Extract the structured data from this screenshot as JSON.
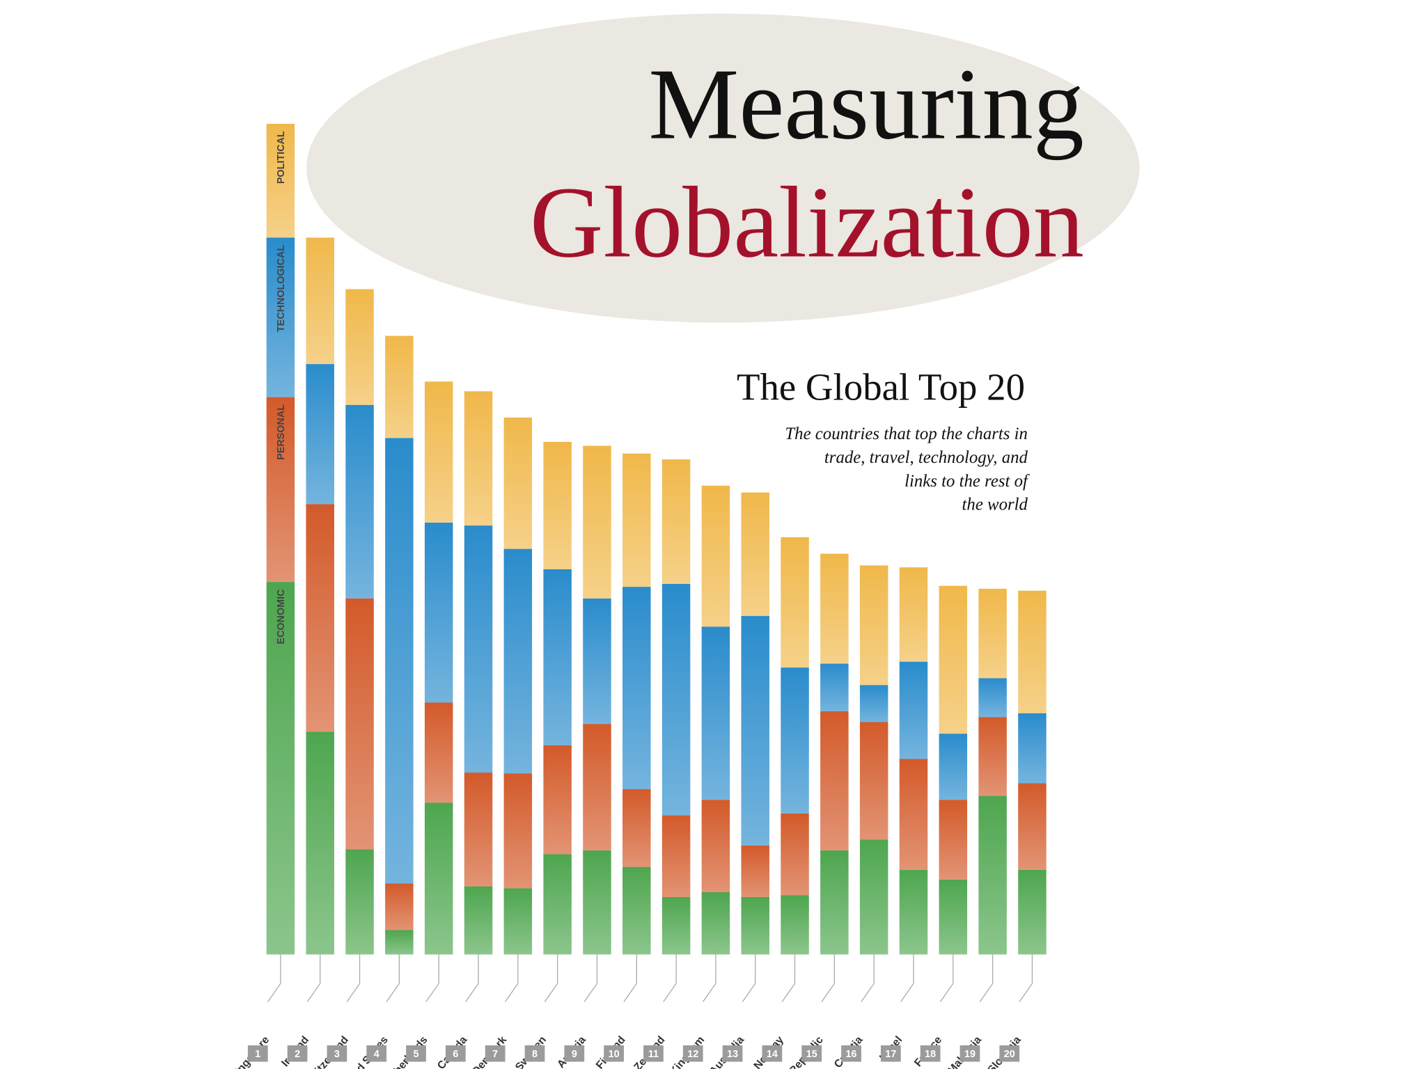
{
  "chart_data": {
    "type": "stacked_bar",
    "title_lines": [
      "Measuring",
      "Globalization"
    ],
    "subtitle": "The Global Top 20",
    "description_lines": [
      "The countries that top the charts in",
      "trade, travel, technology, and",
      "links to the rest of",
      "the world"
    ],
    "categories": [
      "Singapore",
      "Ireland",
      "Switzerland",
      "United States",
      "Netherlands",
      "Canada",
      "Denmark",
      "Sweden",
      "Austria",
      "Finland",
      "New Zealand",
      "United Kingdom",
      "Australia",
      "Norway",
      "Czech Republic",
      "Croatia",
      "Israel",
      "France",
      "Malaysia",
      "Slovenia"
    ],
    "ranks": [
      "1",
      "2",
      "3",
      "4",
      "5",
      "6",
      "7",
      "8",
      "9",
      "10",
      "11",
      "12",
      "13",
      "14",
      "15",
      "16",
      "17",
      "18",
      "19",
      "20"
    ],
    "ylim": [
      0,
      10
    ],
    "series": [
      {
        "name": "ECONOMIC",
        "color": "#4ea64f",
        "values": [
          3.83,
          2.29,
          1.08,
          0.25,
          1.56,
          0.7,
          0.68,
          1.03,
          1.07,
          0.9,
          0.59,
          0.64,
          0.59,
          0.61,
          1.07,
          1.18,
          0.87,
          0.77,
          1.63,
          0.87
        ]
      },
      {
        "name": "PERSONAL",
        "color": "#d35a2a",
        "values": [
          1.9,
          2.34,
          2.58,
          0.48,
          1.03,
          1.17,
          1.18,
          1.12,
          1.3,
          0.8,
          0.84,
          0.95,
          0.53,
          0.84,
          1.43,
          1.21,
          1.14,
          0.82,
          0.81,
          0.89
        ]
      },
      {
        "name": "TECHNOLOGICAL",
        "color": "#2a8ccc",
        "values": [
          1.64,
          1.44,
          1.99,
          4.58,
          1.85,
          2.54,
          2.31,
          1.81,
          1.29,
          2.08,
          2.38,
          1.78,
          2.36,
          1.5,
          0.49,
          0.38,
          1.0,
          0.68,
          0.4,
          0.72
        ]
      },
      {
        "name": "POLITICAL",
        "color": "#f0b84a",
        "values": [
          1.17,
          1.3,
          1.19,
          1.05,
          1.45,
          1.38,
          1.35,
          1.31,
          1.57,
          1.37,
          1.28,
          1.45,
          1.27,
          1.34,
          1.13,
          1.23,
          0.97,
          1.52,
          0.92,
          1.26
        ]
      }
    ]
  }
}
